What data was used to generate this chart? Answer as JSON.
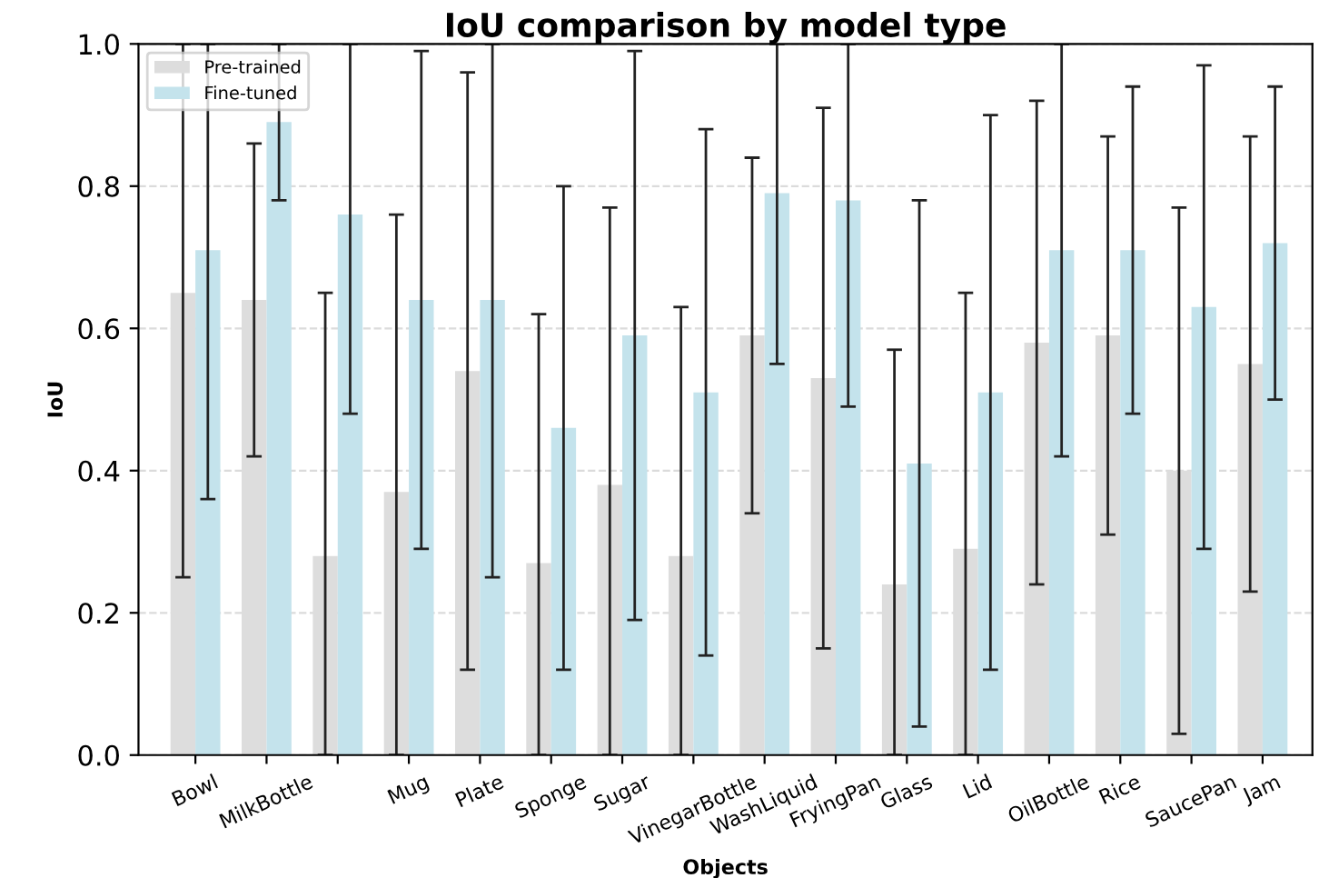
{
  "chart_data": {
    "type": "bar",
    "title": "IoU comparison by model type",
    "xlabel": "Objects",
    "ylabel": "IoU",
    "categories": [
      "Bowl",
      "MilkBottle",
      null,
      "Mug",
      "Plate",
      "Sponge",
      "Sugar",
      "VinegarBottle",
      "WashLiquid",
      "FryingPan",
      "Glass",
      "Lid",
      "OilBottle",
      "Rice",
      "SaucePan",
      "Jam"
    ],
    "series": [
      {
        "name": "Pre-trained",
        "color": "#dddddd",
        "values": [
          0.65,
          0.64,
          0.28,
          0.37,
          0.54,
          0.27,
          0.38,
          0.28,
          0.59,
          0.53,
          0.24,
          0.29,
          0.58,
          0.59,
          0.4,
          0.55
        ],
        "errors": [
          [
            0.25,
            1.0
          ],
          [
            0.42,
            0.86
          ],
          [
            0.0,
            0.65
          ],
          [
            0.0,
            0.76
          ],
          [
            0.12,
            0.96
          ],
          [
            0.0,
            0.62
          ],
          [
            0.0,
            0.77
          ],
          [
            0.0,
            0.63
          ],
          [
            0.34,
            0.84
          ],
          [
            0.15,
            0.91
          ],
          [
            0.0,
            0.57
          ],
          [
            0.0,
            0.65
          ],
          [
            0.24,
            0.92
          ],
          [
            0.31,
            0.87
          ],
          [
            0.03,
            0.77
          ],
          [
            0.23,
            0.87
          ]
        ]
      },
      {
        "name": "Fine-tuned",
        "color": "#c4e3ec",
        "values": [
          0.71,
          0.89,
          0.76,
          0.64,
          0.64,
          0.46,
          0.59,
          0.51,
          0.79,
          0.78,
          0.41,
          0.51,
          0.71,
          0.71,
          0.63,
          0.72
        ],
        "errors": [
          [
            0.36,
            1.0
          ],
          [
            0.78,
            1.0
          ],
          [
            0.48,
            1.0
          ],
          [
            0.29,
            0.99
          ],
          [
            0.25,
            1.0
          ],
          [
            0.12,
            0.8
          ],
          [
            0.19,
            0.99
          ],
          [
            0.14,
            0.88
          ],
          [
            0.55,
            1.0
          ],
          [
            0.49,
            1.0
          ],
          [
            0.04,
            0.78
          ],
          [
            0.12,
            0.9
          ],
          [
            0.42,
            1.0
          ],
          [
            0.48,
            0.94
          ],
          [
            0.29,
            0.97
          ],
          [
            0.5,
            0.94
          ]
        ]
      }
    ],
    "ylim": [
      0,
      1.0
    ],
    "yticks": [
      {
        "value": 0,
        "label": "0.0"
      },
      0.2,
      0.4,
      0.6,
      0.8,
      {
        "value": 1,
        "label": "1.0"
      }
    ],
    "grid": "y",
    "legend": "top left"
  }
}
